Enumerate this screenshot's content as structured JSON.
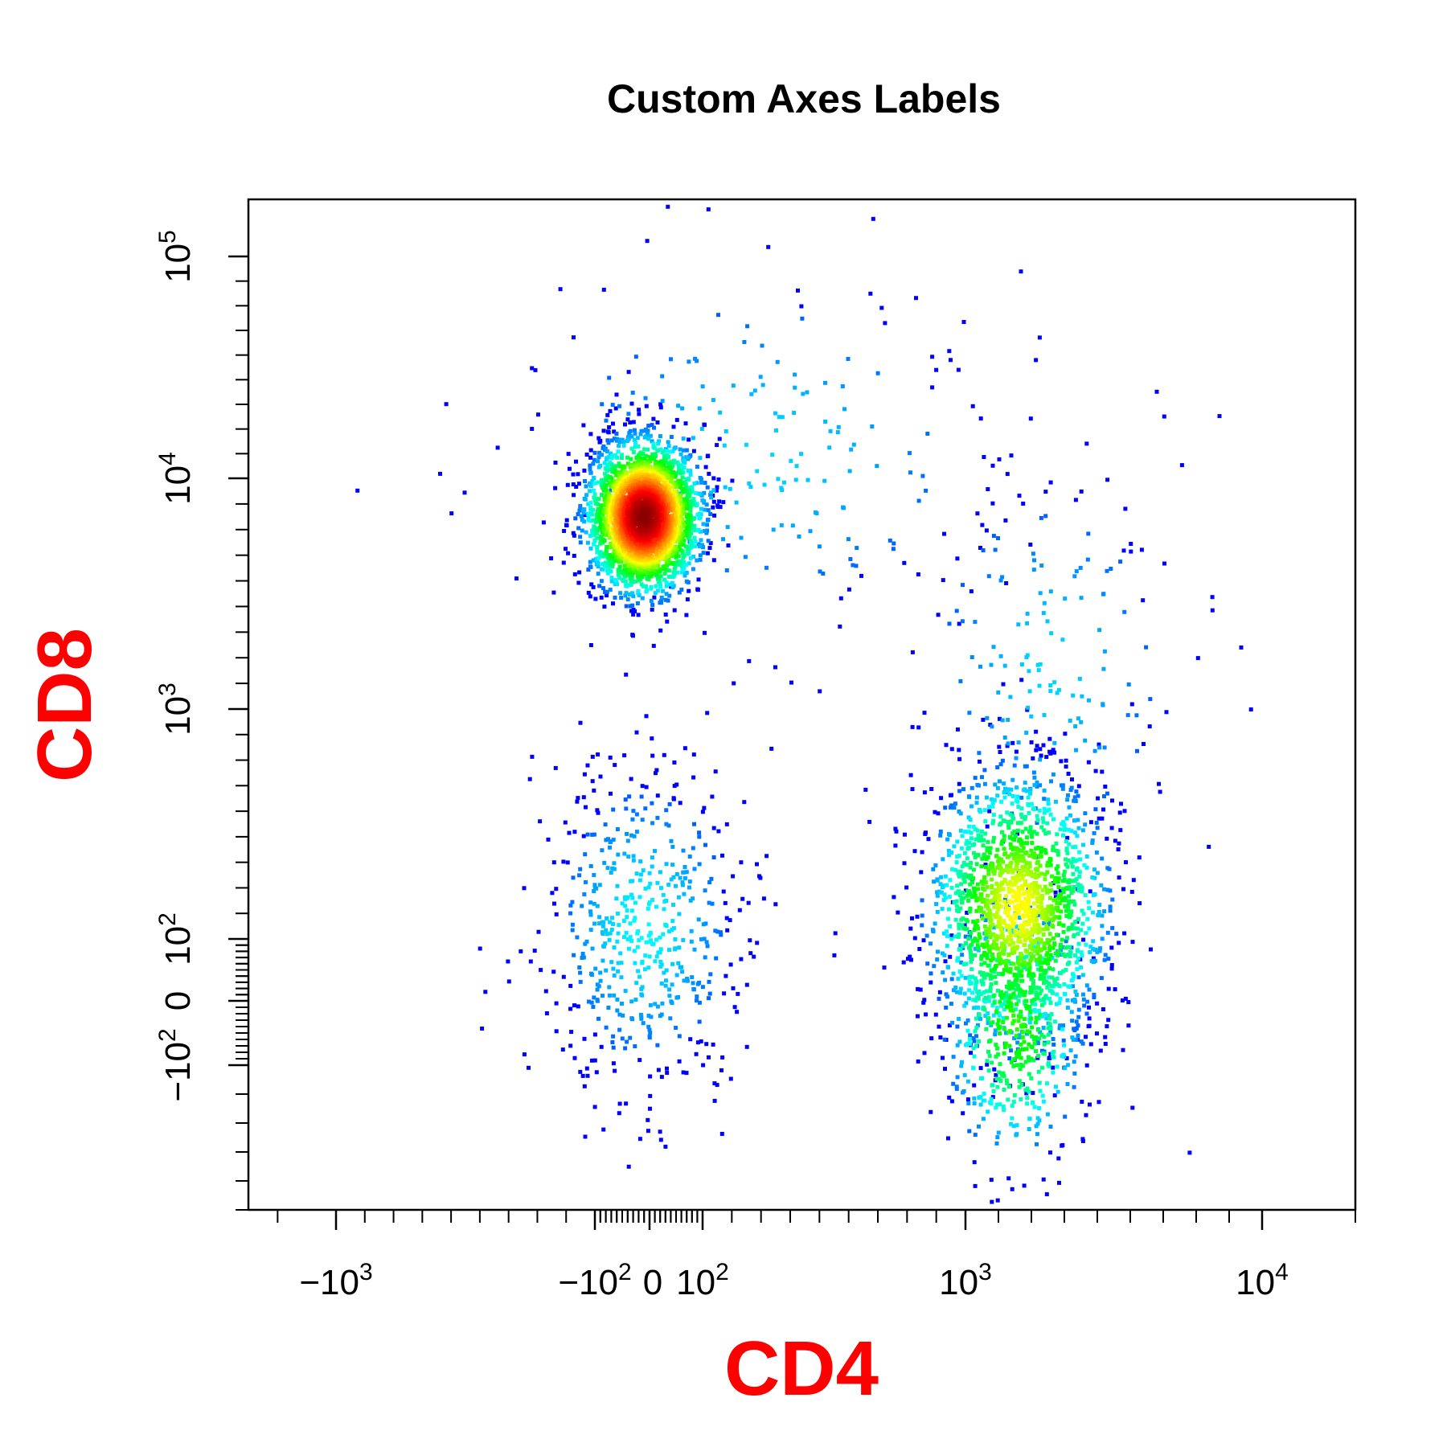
{
  "chart_data": {
    "type": "scatter",
    "title": "Custom Axes Labels",
    "xlabel": "CD4",
    "ylabel": "CD8",
    "label_color": "#ff0000",
    "scale": "biexponential",
    "xlim": [
      -2500,
      20000
    ],
    "ylim": [
      -600,
      180000
    ],
    "x_ticks": [
      {
        "value": -1000,
        "label": "−10",
        "sup": "3"
      },
      {
        "value": -100,
        "label": "−10",
        "sup": "2"
      },
      {
        "value": 0,
        "label": "0",
        "sup": ""
      },
      {
        "value": 100,
        "label": "10",
        "sup": "2"
      },
      {
        "value": 1000,
        "label": "10",
        "sup": "3"
      },
      {
        "value": 10000,
        "label": "10",
        "sup": "4"
      }
    ],
    "y_ticks": [
      {
        "value": -100,
        "label": "−10",
        "sup": "2"
      },
      {
        "value": 0,
        "label": "0",
        "sup": ""
      },
      {
        "value": 100,
        "label": "10",
        "sup": "2"
      },
      {
        "value": 1000,
        "label": "10",
        "sup": "3"
      },
      {
        "value": 10000,
        "label": "10",
        "sup": "4"
      },
      {
        "value": 100000,
        "label": "10",
        "sup": "5"
      }
    ],
    "color_scale": [
      "#0000ff",
      "#00ffff",
      "#00ff00",
      "#ffff00",
      "#ff8000",
      "#ff0000",
      "#8b0000"
    ],
    "populations": [
      {
        "center": {
          "x": -10,
          "y": 8500
        },
        "spread_x_decades": 0.09,
        "spread_y_decades": 0.16,
        "points": 3000,
        "peak_density": 1.0
      },
      {
        "center": {
          "x": 2600,
          "y": 220
        },
        "spread_x_decades": 0.15,
        "spread_y_decades": 0.3,
        "points": 1700,
        "peak_density": 0.45
      },
      {
        "center": {
          "x": -10,
          "y": 150
        },
        "spread_x_decades": 0.18,
        "spread_y_decades": 0.38,
        "points": 550,
        "peak_density": 0.12
      },
      {
        "center": {
          "x": 2500,
          "y": -40
        },
        "spread_x_decades": 0.12,
        "spread_y_decades": 0.3,
        "points": 500,
        "peak_density": 0.3
      },
      {
        "center": {
          "x": 300,
          "y": 20000
        },
        "spread_x_decades": 0.45,
        "spread_y_decades": 0.45,
        "points": 200,
        "peak_density": 0.1
      },
      {
        "center": {
          "x": 3500,
          "y": 2500
        },
        "spread_x_decades": 0.25,
        "spread_y_decades": 0.5,
        "points": 180,
        "peak_density": 0.1
      }
    ]
  }
}
